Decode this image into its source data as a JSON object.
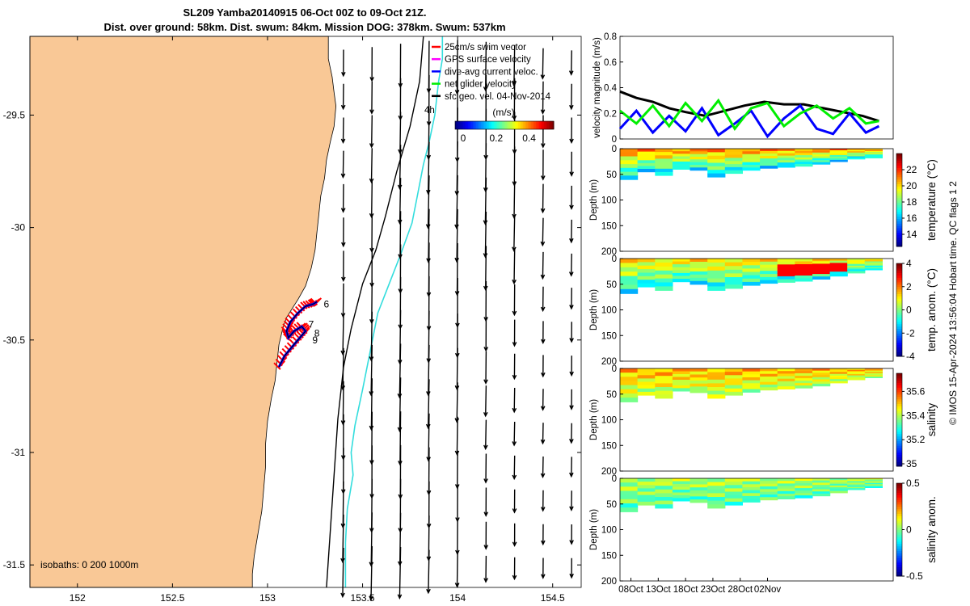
{
  "title": {
    "line1": "SL209 Yamba20140915 06-Oct 00Z to 09-Oct 21Z.",
    "line2": "Dist. over ground: 58km. Dist. swum: 84km. Mission DOG: 378km. Swum: 537km"
  },
  "colors": {
    "land": "#f9c896",
    "coast_cyan": "#33dddd",
    "track_red": "#ff0000",
    "track_blue": "#0000ff",
    "net_green": "#00ee00"
  },
  "chart_data": [
    {
      "type": "map",
      "name": "glider-map",
      "xlim": [
        151.75,
        154.65
      ],
      "ylim": [
        -31.6,
        -29.15
      ],
      "xticks": [
        152,
        152.5,
        153,
        153.5,
        154,
        154.5
      ],
      "xtick_labels": [
        "152",
        "152.5",
        "153",
        "153.5",
        "154",
        "154.5"
      ],
      "yticks": [
        -29.5,
        -30,
        -30.5,
        -31,
        -31.5
      ],
      "ytick_labels": [
        "-29.5",
        "-30",
        "-30.5",
        "-31",
        "-31.5"
      ],
      "legend": [
        {
          "label": "25cm/s swim vector",
          "color": "#ff0000"
        },
        {
          "label": "GPS surface velocity",
          "color": "#ff00ff"
        },
        {
          "label": "dive-avg current veloc.",
          "color": "#0000ff"
        },
        {
          "label": "net glider velocity",
          "color": "#00ee00"
        },
        {
          "label": "sfc geo. vel. 04-Nov-2014",
          "color": "#000000"
        }
      ],
      "legend_placement": "top-right",
      "ref_arrow_label": "4h",
      "colorbar": {
        "title": "(m/s)",
        "range": [
          0,
          0.5
        ],
        "ticks": [
          0,
          0.2,
          0.4
        ],
        "tick_labels": [
          "0",
          "0.2",
          "0.4"
        ]
      },
      "isobath_label": "isobaths: 0   200  1000m",
      "track_day_labels": [
        "6",
        "7",
        "8",
        "9"
      ],
      "grid": false
    },
    {
      "type": "line",
      "name": "velocity-magnitude",
      "ylabel": "velocity magnitude (m/s)",
      "ylim": [
        0,
        0.8
      ],
      "yticks": [
        0,
        0.2,
        0.4,
        0.6,
        0.8
      ],
      "ytick_labels": [
        "0",
        "0.2",
        "0.4",
        "0.6",
        "0.8"
      ],
      "xlim": [
        0,
        50
      ],
      "series": [
        {
          "color": "#000000",
          "x": [
            0,
            0.5,
            1,
            1.5,
            2,
            2.6,
            3.2,
            3.8,
            4.4,
            5.0,
            5.6,
            6.2,
            6.8,
            7.4,
            7.9
          ],
          "y": [
            0.37,
            0.32,
            0.29,
            0.24,
            0.21,
            0.18,
            0.22,
            0.26,
            0.29,
            0.27,
            0.27,
            0.24,
            0.21,
            0.18,
            0.14
          ]
        },
        {
          "color": "#0000ff",
          "x": [
            0,
            0.5,
            1,
            1.5,
            2,
            2.5,
            3,
            3.5,
            4,
            4.5,
            5,
            5.5,
            6,
            6.5,
            7,
            7.5,
            7.9
          ],
          "y": [
            0.08,
            0.22,
            0.05,
            0.18,
            0.06,
            0.24,
            0.03,
            0.12,
            0.22,
            0.02,
            0.16,
            0.26,
            0.08,
            0.04,
            0.2,
            0.05,
            0.1
          ]
        },
        {
          "color": "#00ee00",
          "x": [
            0,
            0.5,
            1,
            1.5,
            2,
            2.5,
            3,
            3.5,
            4,
            4.5,
            5,
            5.5,
            6,
            6.5,
            7,
            7.5,
            7.9
          ],
          "y": [
            0.22,
            0.12,
            0.26,
            0.1,
            0.28,
            0.14,
            0.3,
            0.08,
            0.24,
            0.28,
            0.1,
            0.2,
            0.26,
            0.16,
            0.24,
            0.12,
            0.14
          ]
        }
      ]
    },
    {
      "type": "heatmap",
      "name": "temperature",
      "ylabel": "Depth (m)",
      "ylim": [
        0,
        200
      ],
      "yticks": [
        0,
        50,
        100,
        150,
        200
      ],
      "ytick_labels": [
        "0",
        "50",
        "100",
        "150",
        "200"
      ],
      "colorbar_label": "temperature (°C)",
      "crange": [
        12.5,
        24
      ],
      "cticks": [
        14,
        16,
        18,
        20,
        22
      ],
      "ctick_labels": [
        "14",
        "16",
        "18",
        "20",
        "22"
      ],
      "data_extent": {
        "x": [
          0,
          8
        ],
        "depth_profile": [
          60,
          45,
          52,
          40,
          42,
          55,
          48,
          42,
          38,
          36,
          34,
          30,
          25,
          20,
          18
        ]
      },
      "surface_value": 21,
      "bottom_value": 16.5
    },
    {
      "type": "heatmap",
      "name": "temperature-anomaly",
      "ylabel": "Depth (m)",
      "ylim": [
        0,
        200
      ],
      "yticks": [
        0,
        50,
        100,
        150,
        200
      ],
      "ytick_labels": [
        "0",
        "50",
        "100",
        "150",
        "200"
      ],
      "colorbar_label": "temp. anom. (°C)",
      "crange": [
        -4,
        4
      ],
      "cticks": [
        -4,
        -2,
        0,
        2,
        4
      ],
      "ctick_labels": [
        "-4",
        "-2",
        "0",
        "2",
        "4"
      ],
      "data_extent": {
        "x": [
          0,
          8
        ],
        "depth_profile": [
          68,
          55,
          62,
          45,
          50,
          62,
          58,
          52,
          48,
          46,
          44,
          40,
          34,
          28,
          22
        ]
      },
      "surface_value": 1.2,
      "bottom_value": -1.0
    },
    {
      "type": "heatmap",
      "name": "salinity",
      "ylabel": "Depth (m)",
      "ylim": [
        0,
        200
      ],
      "yticks": [
        0,
        50,
        100,
        150,
        200
      ],
      "ytick_labels": [
        "0",
        "50",
        "100",
        "150",
        "200"
      ],
      "colorbar_label": "salinity",
      "crange": [
        34.98,
        35.75
      ],
      "cticks": [
        35,
        35.2,
        35.4,
        35.6
      ],
      "ctick_labels": [
        "35",
        "35.2",
        "35.4",
        "35.6"
      ],
      "data_extent": {
        "x": [
          0,
          8
        ],
        "depth_profile": [
          65,
          52,
          58,
          44,
          47,
          58,
          52,
          46,
          42,
          40,
          38,
          34,
          28,
          22,
          18
        ]
      },
      "surface_value": 35.52,
      "bottom_value": 35.4
    },
    {
      "type": "heatmap",
      "name": "salinity-anomaly",
      "ylabel": "Depth (m)",
      "ylim": [
        0,
        200
      ],
      "yticks": [
        0,
        50,
        100,
        150,
        200
      ],
      "ytick_labels": [
        "0",
        "50",
        "100",
        "150",
        "200"
      ],
      "colorbar_label": "salinity anom.",
      "crange": [
        -0.5,
        0.5
      ],
      "cticks": [
        -0.5,
        0,
        0.5
      ],
      "ctick_labels": [
        "-0.5",
        "0",
        "0.5"
      ],
      "data_extent": {
        "x": [
          0,
          8
        ],
        "depth_profile": [
          65,
          52,
          58,
          44,
          47,
          58,
          52,
          46,
          42,
          40,
          38,
          34,
          28,
          22,
          18
        ]
      },
      "surface_value": 0.05,
      "bottom_value": -0.05,
      "xticks": [
        2,
        7,
        12,
        17,
        22,
        27
      ],
      "xtick_labels": [
        "08Oct",
        "13Oct",
        "18Oct",
        "23Oct",
        "28Oct",
        "02Nov"
      ]
    }
  ],
  "footer": "© IMOS 15-Apr-2024 13:56:04 Hobart time. QC flags 1  2"
}
